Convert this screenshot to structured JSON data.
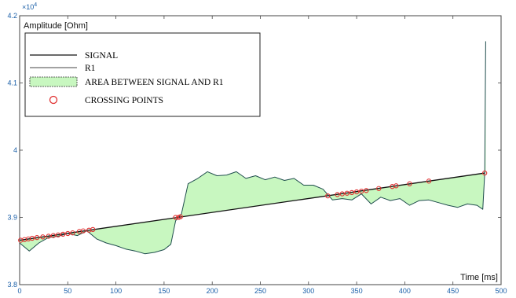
{
  "chart_data": {
    "type": "line",
    "ylabel": "Amplitude [Ohm]",
    "xlabel": "Time [ms]",
    "y_exponent_label": "×10",
    "y_exponent_power": "4",
    "xlim": [
      0,
      500
    ],
    "ylim": [
      3.8,
      4.2
    ],
    "x_ticks": [
      "0",
      "50",
      "100",
      "150",
      "200",
      "250",
      "300",
      "350",
      "400",
      "450",
      "500"
    ],
    "y_ticks": [
      "3.8",
      "3.9",
      "4",
      "4.1",
      "4.2"
    ],
    "legend": [
      {
        "label": "SIGNAL",
        "kind": "line"
      },
      {
        "label": "R1",
        "kind": "line"
      },
      {
        "label": "AREA BETWEEN SIGNAL AND R1",
        "kind": "fill"
      },
      {
        "label": "CROSSING POINTS",
        "kind": "marker"
      }
    ],
    "colors": {
      "signal": "#1f4d4d",
      "r1": "#111111",
      "fill": "#c8f7c0",
      "marker": "#e03030",
      "ticks": "#1a5fa8"
    },
    "r1_line": {
      "x": [
        0,
        483
      ],
      "y": [
        3.866,
        3.966
      ]
    },
    "series": [
      {
        "name": "SIGNAL",
        "x": [
          0,
          10,
          20,
          30,
          40,
          50,
          60,
          70,
          80,
          90,
          100,
          110,
          120,
          130,
          140,
          150,
          157,
          162,
          168,
          175,
          185,
          195,
          205,
          215,
          225,
          235,
          245,
          255,
          265,
          275,
          285,
          295,
          305,
          315,
          325,
          335,
          345,
          355,
          365,
          375,
          385,
          395,
          405,
          415,
          425,
          435,
          445,
          455,
          465,
          475,
          481,
          483,
          484
        ],
        "y": [
          3.862,
          3.85,
          3.862,
          3.87,
          3.872,
          3.876,
          3.873,
          3.88,
          3.868,
          3.862,
          3.858,
          3.853,
          3.85,
          3.846,
          3.848,
          3.852,
          3.86,
          3.895,
          3.905,
          3.95,
          3.958,
          3.968,
          3.962,
          3.963,
          3.968,
          3.958,
          3.962,
          3.956,
          3.96,
          3.955,
          3.958,
          3.948,
          3.948,
          3.942,
          3.926,
          3.928,
          3.926,
          3.935,
          3.92,
          3.93,
          3.925,
          3.928,
          3.918,
          3.925,
          3.926,
          3.922,
          3.918,
          3.915,
          3.92,
          3.918,
          3.912,
          3.966,
          4.162
        ]
      }
    ],
    "crossing_points": {
      "x": [
        1,
        5,
        9,
        13,
        18,
        24,
        30,
        35,
        40,
        45,
        50,
        55,
        62,
        66,
        72,
        76,
        162,
        165,
        167,
        320,
        330,
        335,
        340,
        345,
        350,
        355,
        360,
        373,
        387,
        391,
        405,
        425,
        483
      ],
      "y": [
        3.866,
        3.867,
        3.868,
        3.869,
        3.87,
        3.871,
        3.872,
        3.873,
        3.874,
        3.875,
        3.876,
        3.877,
        3.879,
        3.88,
        3.881,
        3.882,
        3.9,
        3.9,
        3.901,
        3.932,
        3.934,
        3.935,
        3.936,
        3.937,
        3.938,
        3.939,
        3.94,
        3.943,
        3.946,
        3.947,
        3.95,
        3.954,
        3.966
      ]
    }
  }
}
